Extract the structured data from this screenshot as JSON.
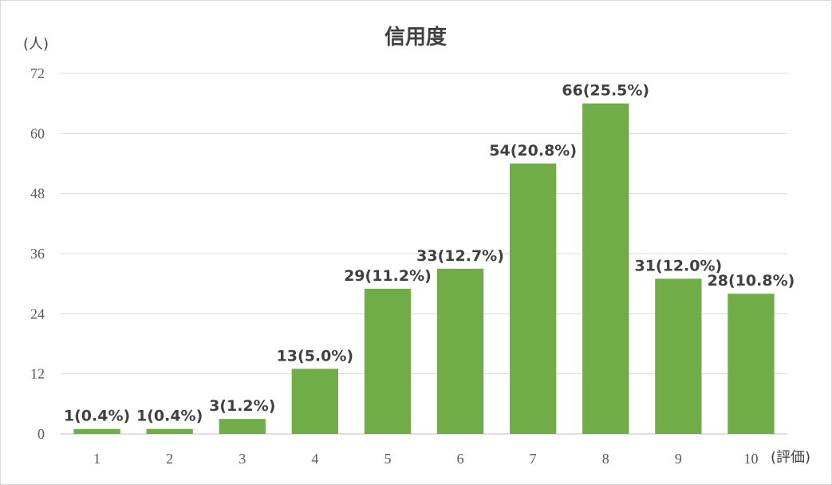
{
  "chart_data": {
    "type": "bar",
    "title": "信用度",
    "ylabel": "(人)",
    "xlabel": "(評価)",
    "categories": [
      "1",
      "2",
      "3",
      "4",
      "5",
      "6",
      "7",
      "8",
      "9",
      "10"
    ],
    "values": [
      1,
      1,
      3,
      13,
      29,
      33,
      54,
      66,
      31,
      28
    ],
    "data_labels": [
      "1(0.4%)",
      "1(0.4%)",
      "3(1.2%)",
      "13(5.0%)",
      "29(11.2%)",
      "33(12.7%)",
      "54(20.8%)",
      "66(25.5%)",
      "31(12.0%)",
      "28(10.8%)"
    ],
    "ylim": [
      0,
      72
    ],
    "yticks": [
      "0",
      "12",
      "24",
      "36",
      "48",
      "60",
      "72"
    ],
    "bar_color": "#70ad47",
    "grid": true,
    "legend": "none"
  }
}
